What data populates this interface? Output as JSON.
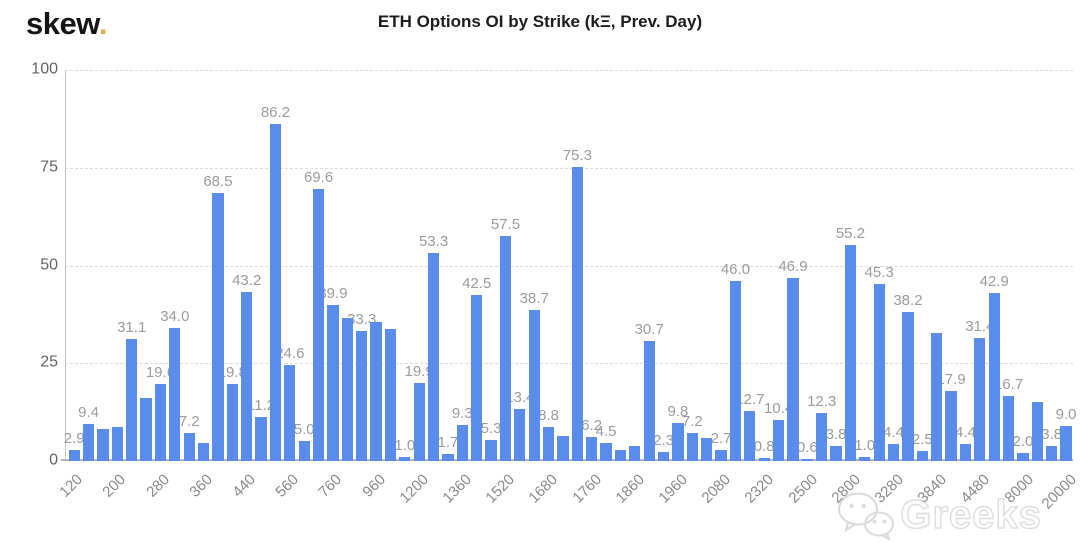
{
  "header": {
    "logo_text": "skew",
    "logo_dot": ".",
    "title": "ETH Options OI by Strike (kΞ, Prev. Day)"
  },
  "watermark": {
    "icon": "wechat-icon",
    "text": "Greeks"
  },
  "colors": {
    "bar": "#5a8deb",
    "data_label": "#9b9b9b",
    "axis_label": "#8a8a8a",
    "gridline": "#dcdcdc",
    "title": "#1c1c1c",
    "logo_dot": "#e9a93c",
    "watermark": "#c4c4c4"
  },
  "chart_data": {
    "type": "bar",
    "title": "ETH Options OI by Strike (kΞ, Prev. Day)",
    "xlabel": "",
    "ylabel": "",
    "ylim": [
      0,
      100
    ],
    "yticks": [
      0,
      25,
      50,
      75,
      100
    ],
    "grid": "horizontal-dashed",
    "legend": "none",
    "x_tick_labels": [
      "120",
      "200",
      "280",
      "360",
      "440",
      "560",
      "760",
      "960",
      "1200",
      "1360",
      "1520",
      "1680",
      "1760",
      "1860",
      "1960",
      "2080",
      "2320",
      "2500",
      "2800",
      "3280",
      "3840",
      "4480",
      "8000",
      "20000"
    ],
    "bars": [
      {
        "value": 2.9,
        "label": "2.9"
      },
      {
        "value": 9.4,
        "label": "9.4"
      },
      {
        "value": 8.1,
        "label": ""
      },
      {
        "value": 8.6,
        "label": ""
      },
      {
        "value": 31.1,
        "label": "31.1"
      },
      {
        "value": 16.0,
        "label": ""
      },
      {
        "value": 19.6,
        "label": "19.6"
      },
      {
        "value": 34.0,
        "label": "34.0"
      },
      {
        "value": 7.2,
        "label": "7.2"
      },
      {
        "value": 4.5,
        "label": ""
      },
      {
        "value": 68.5,
        "label": "68.5"
      },
      {
        "value": 19.8,
        "label": "19.8"
      },
      {
        "value": 43.2,
        "label": "43.2"
      },
      {
        "value": 11.2,
        "label": "11.2"
      },
      {
        "value": 86.2,
        "label": "86.2"
      },
      {
        "value": 24.6,
        "label": "24.6"
      },
      {
        "value": 5.0,
        "label": "5.0"
      },
      {
        "value": 69.6,
        "label": "69.6"
      },
      {
        "value": 39.9,
        "label": "39.9"
      },
      {
        "value": 36.5,
        "label": ""
      },
      {
        "value": 33.3,
        "label": "33.3"
      },
      {
        "value": 35.5,
        "label": ""
      },
      {
        "value": 33.8,
        "label": ""
      },
      {
        "value": 1.0,
        "label": "1.0"
      },
      {
        "value": 19.9,
        "label": "19.9"
      },
      {
        "value": 53.3,
        "label": "53.3"
      },
      {
        "value": 1.7,
        "label": "1.7"
      },
      {
        "value": 9.3,
        "label": "9.3"
      },
      {
        "value": 42.5,
        "label": "42.5"
      },
      {
        "value": 5.3,
        "label": "5.3"
      },
      {
        "value": 57.5,
        "label": "57.5"
      },
      {
        "value": 13.4,
        "label": "13.4"
      },
      {
        "value": 38.7,
        "label": "38.7"
      },
      {
        "value": 8.8,
        "label": "8.8"
      },
      {
        "value": 6.5,
        "label": ""
      },
      {
        "value": 75.3,
        "label": "75.3"
      },
      {
        "value": 6.2,
        "label": "6.2"
      },
      {
        "value": 4.5,
        "label": "4.5"
      },
      {
        "value": 2.9,
        "label": ""
      },
      {
        "value": 3.8,
        "label": ""
      },
      {
        "value": 30.7,
        "label": "30.7"
      },
      {
        "value": 2.3,
        "label": "2.3"
      },
      {
        "value": 9.8,
        "label": "9.8"
      },
      {
        "value": 7.2,
        "label": "7.2"
      },
      {
        "value": 6.0,
        "label": ""
      },
      {
        "value": 2.7,
        "label": "2.7"
      },
      {
        "value": 46.0,
        "label": "46.0"
      },
      {
        "value": 12.7,
        "label": "12.7"
      },
      {
        "value": 0.8,
        "label": "0.8"
      },
      {
        "value": 10.4,
        "label": "10.4"
      },
      {
        "value": 46.9,
        "label": "46.9"
      },
      {
        "value": 0.6,
        "label": "0.6"
      },
      {
        "value": 12.3,
        "label": "12.3"
      },
      {
        "value": 3.8,
        "label": "3.8"
      },
      {
        "value": 55.2,
        "label": "55.2"
      },
      {
        "value": 1.0,
        "label": "1.0"
      },
      {
        "value": 45.3,
        "label": "45.3"
      },
      {
        "value": 4.4,
        "label": "4.4"
      },
      {
        "value": 38.2,
        "label": "38.2"
      },
      {
        "value": 2.5,
        "label": "2.5"
      },
      {
        "value": 32.8,
        "label": ""
      },
      {
        "value": 17.9,
        "label": "17.9"
      },
      {
        "value": 4.4,
        "label": "4.4"
      },
      {
        "value": 31.4,
        "label": "31.4"
      },
      {
        "value": 42.9,
        "label": "42.9"
      },
      {
        "value": 16.7,
        "label": "16.7"
      },
      {
        "value": 2.0,
        "label": "2.0"
      },
      {
        "value": 15.0,
        "label": ""
      },
      {
        "value": 3.8,
        "label": "3.8"
      },
      {
        "value": 9.0,
        "label": "9.0"
      }
    ]
  }
}
